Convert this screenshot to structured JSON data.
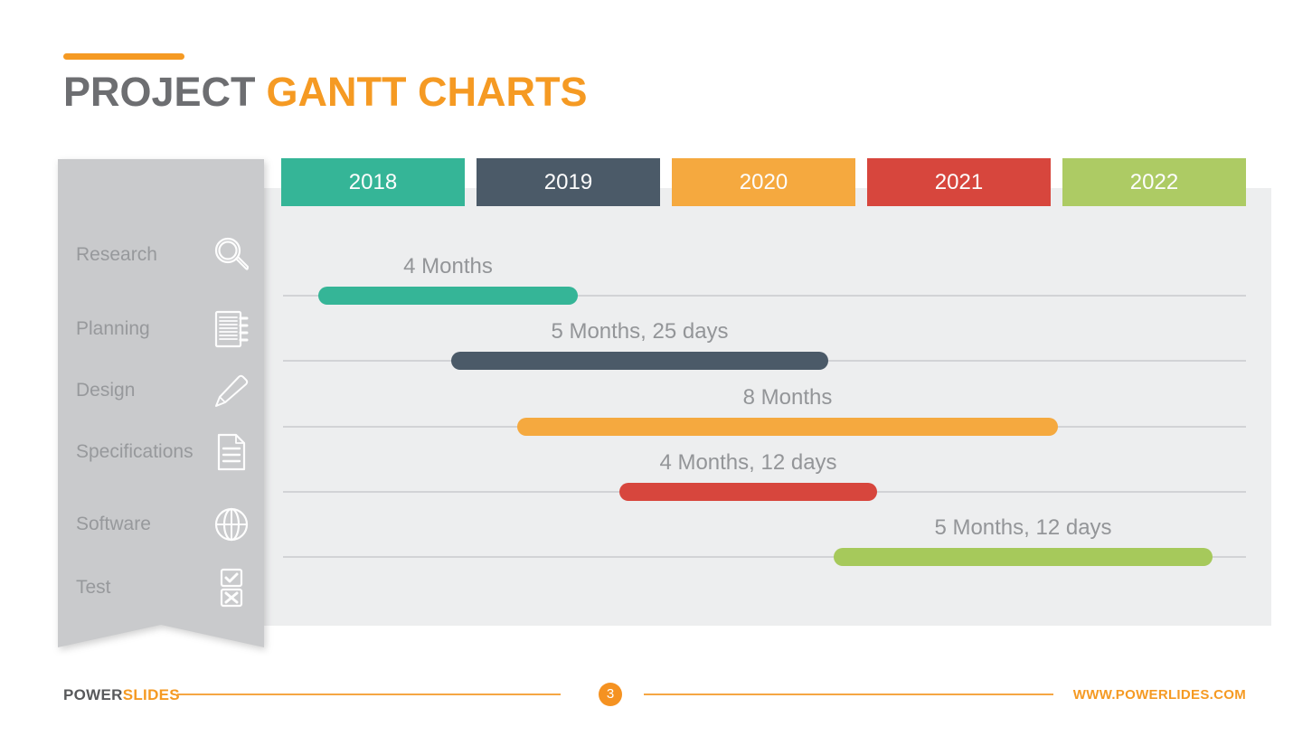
{
  "title": {
    "part1": "PROJECT",
    "part2": "GANTT CHARTS",
    "accent_color": "#F59A23"
  },
  "sidebar": {
    "items": [
      {
        "label": "Research",
        "icon": "magnifier-icon"
      },
      {
        "label": "Planning",
        "icon": "notebook-icon"
      },
      {
        "label": "Design",
        "icon": "pencil-icon"
      },
      {
        "label": "Specifications",
        "icon": "document-icon"
      },
      {
        "label": "Software",
        "icon": "globe-icon"
      },
      {
        "label": "Test",
        "icon": "checkboxes-icon"
      }
    ]
  },
  "chart_data": {
    "type": "gantt",
    "title": "PROJECT GANTT CHARTS",
    "x_axis": {
      "unit": "year",
      "categories": [
        "2018",
        "2019",
        "2020",
        "2021",
        "2022"
      ],
      "range": [
        2018,
        2023
      ]
    },
    "column_colors": [
      "#35B597",
      "#4B5A68",
      "#F5A93F",
      "#D7463D",
      "#ADCB64"
    ],
    "sidebar_categories": [
      "Research",
      "Planning",
      "Design",
      "Specifications",
      "Software",
      "Test"
    ],
    "legend": "none",
    "grid": "row-tracks",
    "tasks": [
      {
        "duration_label": "4 Months",
        "color": "#35B597",
        "start": 2018.19,
        "end": 2019.52
      },
      {
        "duration_label": "5 Months, 25 days",
        "color": "#4B5A68",
        "start": 2018.87,
        "end": 2020.8
      },
      {
        "duration_label": "8 Months",
        "color": "#F5A93F",
        "start": 2019.21,
        "end": 2021.98
      },
      {
        "duration_label": "4 Months, 12 days",
        "color": "#D7463D",
        "start": 2019.73,
        "end": 2021.05
      },
      {
        "duration_label": "5 Months, 12 days",
        "color": "#A6C95B",
        "start": 2020.83,
        "end": 2022.77
      }
    ]
  },
  "footer": {
    "brand_part1": "POWER",
    "brand_part2": "SLIDES",
    "page_number": "3",
    "website": "WWW.POWERLIDES.COM"
  },
  "colors": {
    "accent_orange": "#F59A23",
    "title_gray": "#6D6E71",
    "panel_bg": "#EDEEEF",
    "sidebar_bg": "#C9CACC",
    "track_gray": "#D2D3D6",
    "label_gray": "#939598"
  }
}
